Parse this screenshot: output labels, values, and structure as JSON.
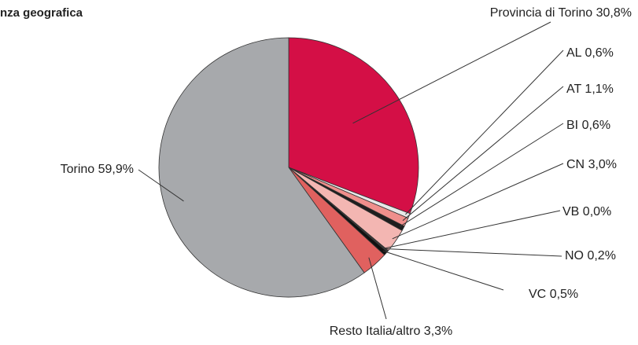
{
  "chart_data": {
    "type": "pie",
    "title": "nza geografica",
    "categories": [
      "Provincia di Torino",
      "AL",
      "AT",
      "BI",
      "CN",
      "VB",
      "NO",
      "VC",
      "Resto Italia/altro",
      "Torino"
    ],
    "values": [
      30.8,
      0.6,
      1.1,
      0.6,
      3.0,
      0.0,
      0.2,
      0.5,
      3.3,
      59.9
    ],
    "value_labels": [
      "30,8%",
      "0,6%",
      "1,1%",
      "0,6%",
      "3,0%",
      "0,0%",
      "0,2%",
      "0,5%",
      "3,3%",
      "59,9%"
    ],
    "colors": [
      "#d40f46",
      "#e8e8e8",
      "#ef8f8c",
      "#1e1e1e",
      "#f3b6b2",
      "#f7cfcc",
      "#3a3a3a",
      "#111111",
      "#e0615f",
      "#a7a9ac"
    ]
  }
}
